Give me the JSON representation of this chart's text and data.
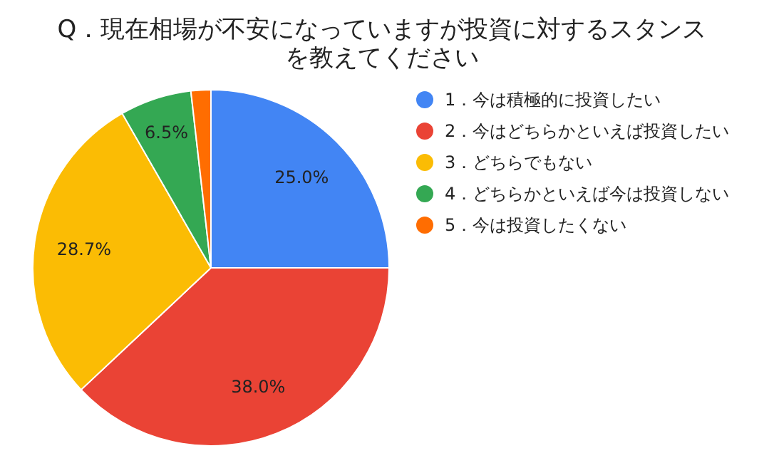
{
  "chart_data": {
    "type": "pie",
    "title": "Q．現在相場が不安になっていますが投資に対するスタンスを教えてください",
    "categories": [
      "1．今は積極的に投資したい",
      "2．今はどちらかといえば投資したい",
      "3．どちらでもない",
      "4．どちらかといえば今は投資しない",
      "5．今は投資したくない"
    ],
    "values": [
      25.0,
      38.0,
      28.7,
      6.5,
      1.8
    ],
    "colors": [
      "#4285f4",
      "#ea4335",
      "#fbbc04",
      "#34a853",
      "#ff6d01"
    ],
    "value_labels": [
      "25.0%",
      "38.0%",
      "28.7%",
      "6.5%",
      null
    ],
    "legend": "right"
  }
}
